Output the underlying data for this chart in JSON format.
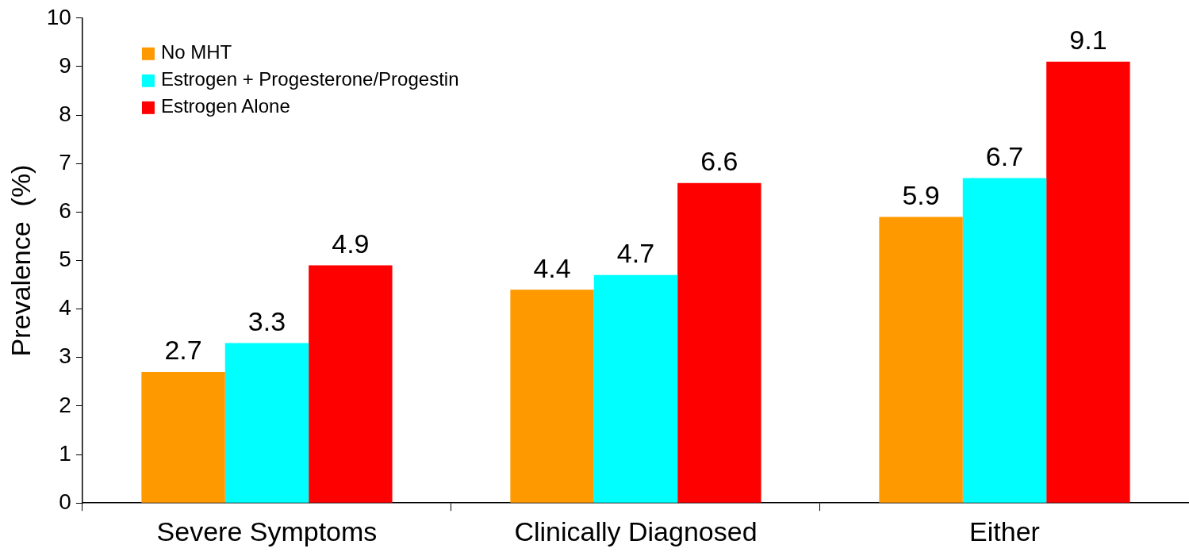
{
  "chart_data": {
    "type": "bar",
    "ylabel": "Prevalence  (%)",
    "categories": [
      "Severe Symptoms",
      "Clinically Diagnosed",
      "Either"
    ],
    "series": [
      {
        "name": "No MHT",
        "color": "#ff9900",
        "values": [
          2.7,
          4.4,
          5.9
        ]
      },
      {
        "name": "Estrogen + Progesterone/Progestin",
        "color": "#00ffff",
        "values": [
          3.3,
          4.7,
          6.7
        ]
      },
      {
        "name": "Estrogen Alone",
        "color": "#ff0000",
        "values": [
          4.9,
          6.6,
          9.1
        ]
      }
    ],
    "ylim": [
      0,
      10
    ],
    "yticks": [
      0,
      1,
      2,
      3,
      4,
      5,
      6,
      7,
      8,
      9,
      10
    ],
    "grid": false,
    "legend": "top left",
    "data_labels": true
  }
}
